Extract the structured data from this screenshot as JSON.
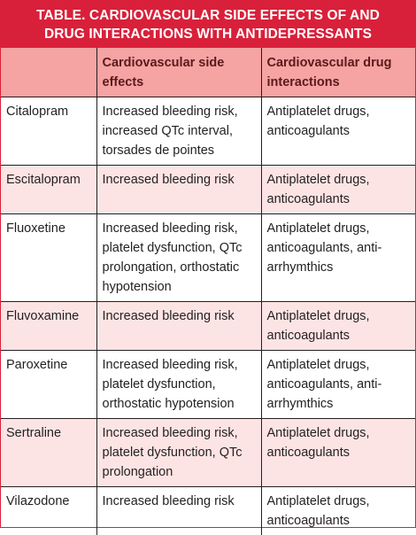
{
  "table": {
    "title_line1": "TABLE. CARDIOVASCULAR SIDE EFFECTS OF AND",
    "title_line2": "DRUG INTERACTIONS WITH ANTIDEPRESSANTS",
    "headers": [
      "",
      "Cardiovascular side effects",
      "Cardiovascular drug interactions"
    ],
    "rows": [
      {
        "drug": "Citalopram",
        "side_effects": "Increased bleeding risk, increased QTc interval, torsades de pointes",
        "interactions": "Antiplatelet drugs, anticoagulants"
      },
      {
        "drug": "Escitalopram",
        "side_effects": "Increased bleeding risk",
        "interactions": "Antiplatelet drugs, anticoagulants"
      },
      {
        "drug": "Fluoxetine",
        "side_effects": "Increased bleeding risk, platelet dysfunction, QTc prolongation, orthostatic hypotension",
        "interactions": "Antiplatelet drugs, anticoagulants, anti-arrhymthics"
      },
      {
        "drug": "Fluvoxamine",
        "side_effects": "Increased bleeding risk",
        "interactions": "Antiplatelet drugs, anticoagulants"
      },
      {
        "drug": "Paroxetine",
        "side_effects": "Increased bleeding risk, platelet dysfunction, orthostatic hypotension",
        "interactions": "Antiplatelet drugs, anticoagulants, anti-arrhymthics"
      },
      {
        "drug": "Sertraline",
        "side_effects": "Increased bleeding risk, platelet dysfunction, QTc prolongation",
        "interactions": "Antiplatelet drugs, anticoagulants"
      },
      {
        "drug": "Vilazodone",
        "side_effects": "Increased bleeding risk",
        "interactions": "Antiplatelet drugs, anticoagulants"
      }
    ]
  }
}
